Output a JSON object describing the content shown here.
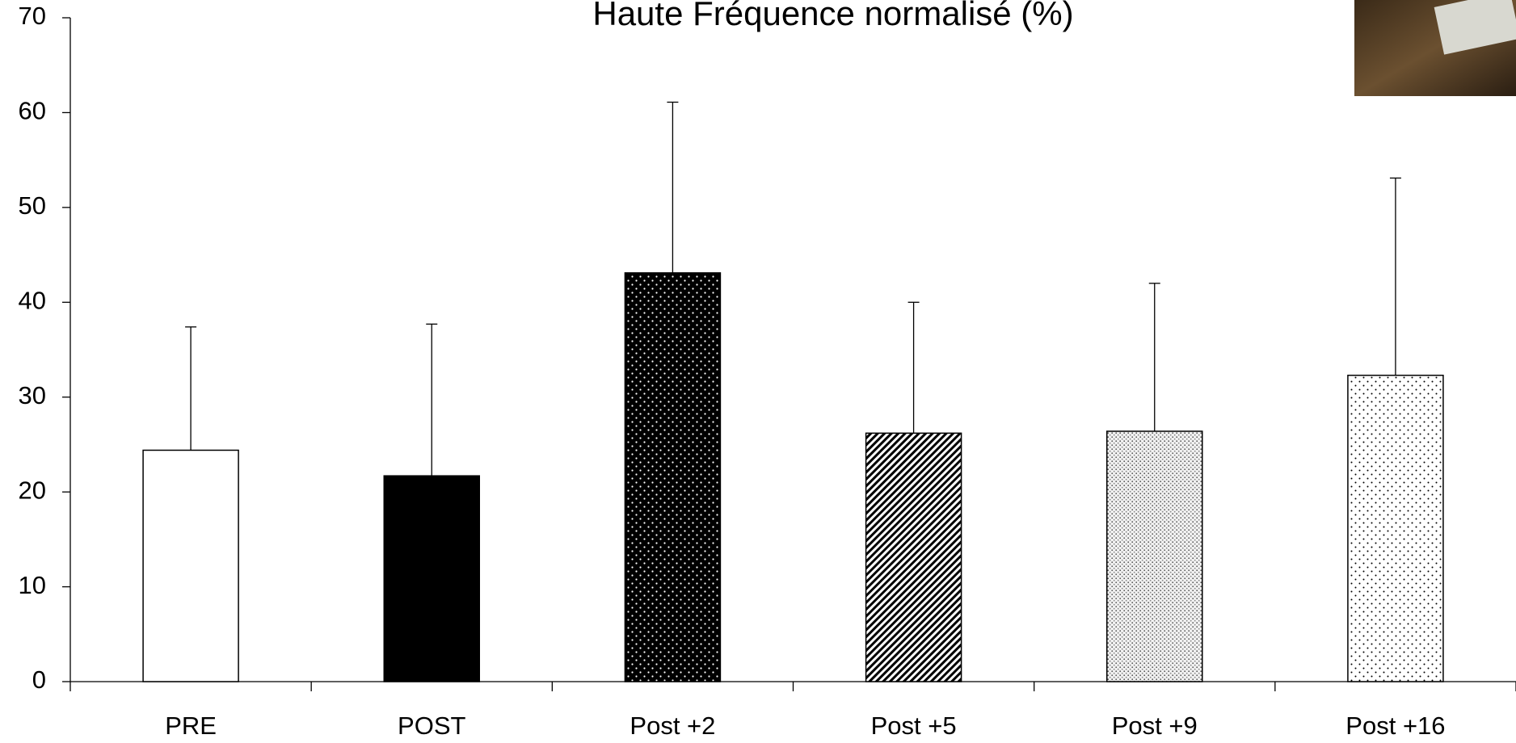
{
  "chart_data": {
    "type": "bar",
    "title": "Haute Fréquence normalisé (%)",
    "categories": [
      "PRE",
      "POST",
      "Post +2",
      "Post +5",
      "Post +9",
      "Post +16"
    ],
    "values": [
      24.4,
      21.7,
      43.1,
      26.2,
      26.4,
      32.3
    ],
    "errors": [
      13.0,
      16.0,
      18.0,
      13.8,
      15.6,
      20.8
    ],
    "fills": [
      "#ffffff",
      "#000000",
      "url(#p-dots-white)",
      "url(#p-hatch)",
      "url(#p-fine-dots)",
      "url(#p-sparse-dots)"
    ],
    "ylim": [
      0,
      70
    ],
    "yticks": [
      0,
      10,
      20,
      30,
      40,
      50,
      60,
      70
    ],
    "grid": false
  }
}
